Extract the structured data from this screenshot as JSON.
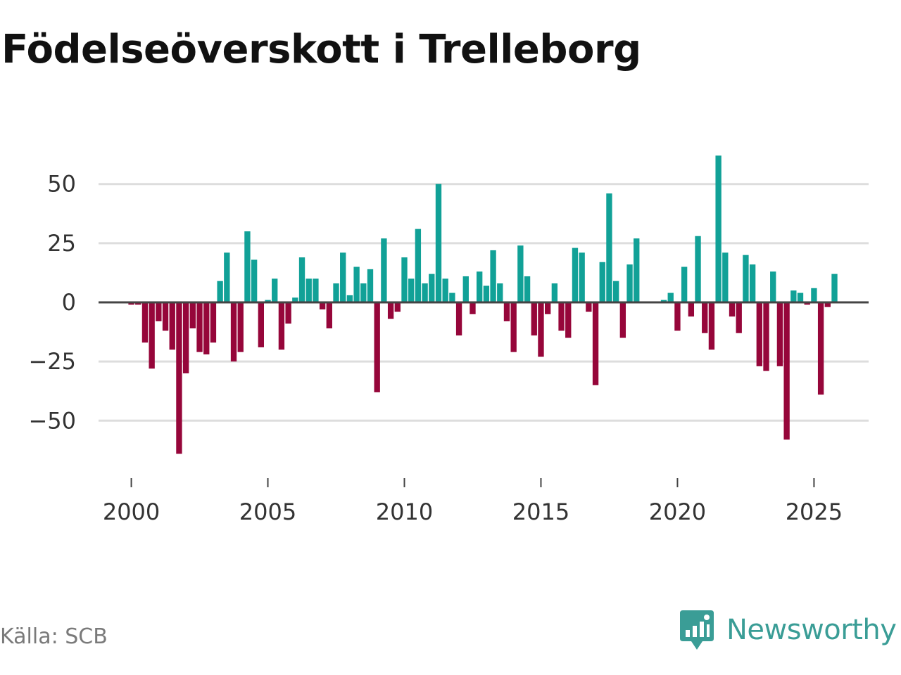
{
  "colors": {
    "positive": "#11a197",
    "negative": "#96063a",
    "gridline": "#dddddd",
    "zeroline": "#444444",
    "brand": "#3a9d96"
  },
  "chart_data": {
    "type": "bar",
    "title": "Födelseöverskott i Trelleborg",
    "xlabel": "",
    "ylabel": "",
    "x_start": 2000,
    "x_step": 0.25,
    "x_ticks": [
      2000,
      2005,
      2010,
      2015,
      2020,
      2025
    ],
    "y_ticks": [
      50,
      25,
      0,
      -25,
      -50
    ],
    "y_tick_labels": [
      "50",
      "25",
      "0",
      "−25",
      "−50"
    ],
    "xlim": [
      1998.8,
      2027.0
    ],
    "ylim": [
      -71,
      71
    ],
    "grid": true,
    "legend": "none",
    "values": [
      -1,
      -1,
      -17,
      -28,
      -8,
      -12,
      -20,
      -64,
      -30,
      -11,
      -21,
      -22,
      -17,
      9,
      21,
      -25,
      -21,
      30,
      18,
      -19,
      1,
      10,
      -20,
      -9,
      2,
      19,
      10,
      10,
      -3,
      -11,
      8,
      21,
      3,
      15,
      8,
      14,
      -38,
      27,
      -7,
      -4,
      19,
      10,
      31,
      8,
      12,
      50,
      10,
      4,
      -14,
      11,
      -5,
      13,
      7,
      22,
      8,
      -8,
      -21,
      24,
      11,
      -14,
      -23,
      -5,
      8,
      -12,
      -15,
      23,
      21,
      -4,
      -35,
      17,
      46,
      9,
      -15,
      16,
      27,
      0,
      0,
      0,
      1,
      4,
      -12,
      15,
      -6,
      28,
      -13,
      -20,
      62,
      21,
      -6,
      -13,
      20,
      16,
      -27,
      -29,
      13,
      -27,
      -58,
      5,
      4,
      -1,
      6,
      -39,
      -2,
      12
    ]
  },
  "footer": {
    "source": "Källa: SCB",
    "brand": "Newsworthy",
    "brand_icon": "newsworthy-logo-icon"
  }
}
